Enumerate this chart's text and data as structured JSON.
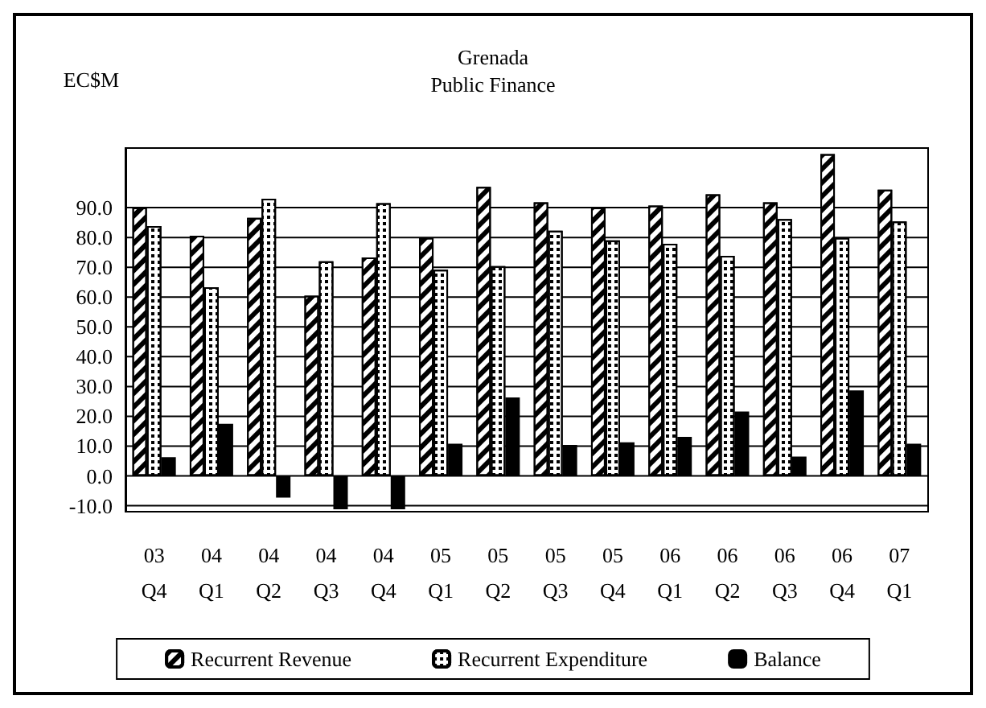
{
  "chart_data": {
    "type": "bar",
    "title": "Grenada",
    "subtitle": "Public Finance",
    "ylabel": "EC$M",
    "categories": [
      "03\nQ4",
      "04\nQ1",
      "04\nQ2",
      "04\nQ3",
      "04\nQ4",
      "05\nQ1",
      "05\nQ2",
      "05\nQ3",
      "05\nQ4",
      "06\nQ1",
      "06\nQ2",
      "06\nQ3",
      "06\nQ4",
      "07\nQ1"
    ],
    "series": [
      {
        "name": "Recurrent Revenue",
        "color": "#ffffff",
        "values": [
          90,
          80.6,
          86.6,
          60.5,
          73.3,
          79.9,
          97,
          91.8,
          90,
          90.7,
          94.5,
          91.8,
          108,
          96
        ]
      },
      {
        "name": "Recurrent Expenditure",
        "color": "#ffffff",
        "values": [
          83.8,
          63.3,
          93,
          72,
          91.5,
          69.2,
          70.4,
          82.3,
          79,
          77.9,
          73.8,
          86.2,
          79.9,
          85.4
        ]
      },
      {
        "name": "Balance",
        "color": "#000000",
        "values": [
          6.3,
          17.5,
          -7.3,
          -11.2,
          -11.2,
          10.8,
          26.3,
          10.4,
          11.3,
          13.1,
          21.6,
          6.5,
          28.7,
          10.8
        ]
      }
    ],
    "ylim": [
      -12,
      110
    ],
    "yticks": [
      {
        "value": -10,
        "label": "-10.0"
      },
      {
        "value": 0,
        "label": "0.0"
      },
      {
        "value": 10,
        "label": "10.0"
      },
      {
        "value": 20,
        "label": "20.0"
      },
      {
        "value": 30,
        "label": "30.0"
      },
      {
        "value": 40,
        "label": "40.0"
      },
      {
        "value": 50,
        "label": "50.0"
      },
      {
        "value": 60,
        "label": "60.0"
      },
      {
        "value": 70,
        "label": "70.0"
      },
      {
        "value": 80,
        "label": "80.0"
      },
      {
        "value": 90,
        "label": "90.0"
      }
    ],
    "grid": "y",
    "legend": "bottom"
  }
}
